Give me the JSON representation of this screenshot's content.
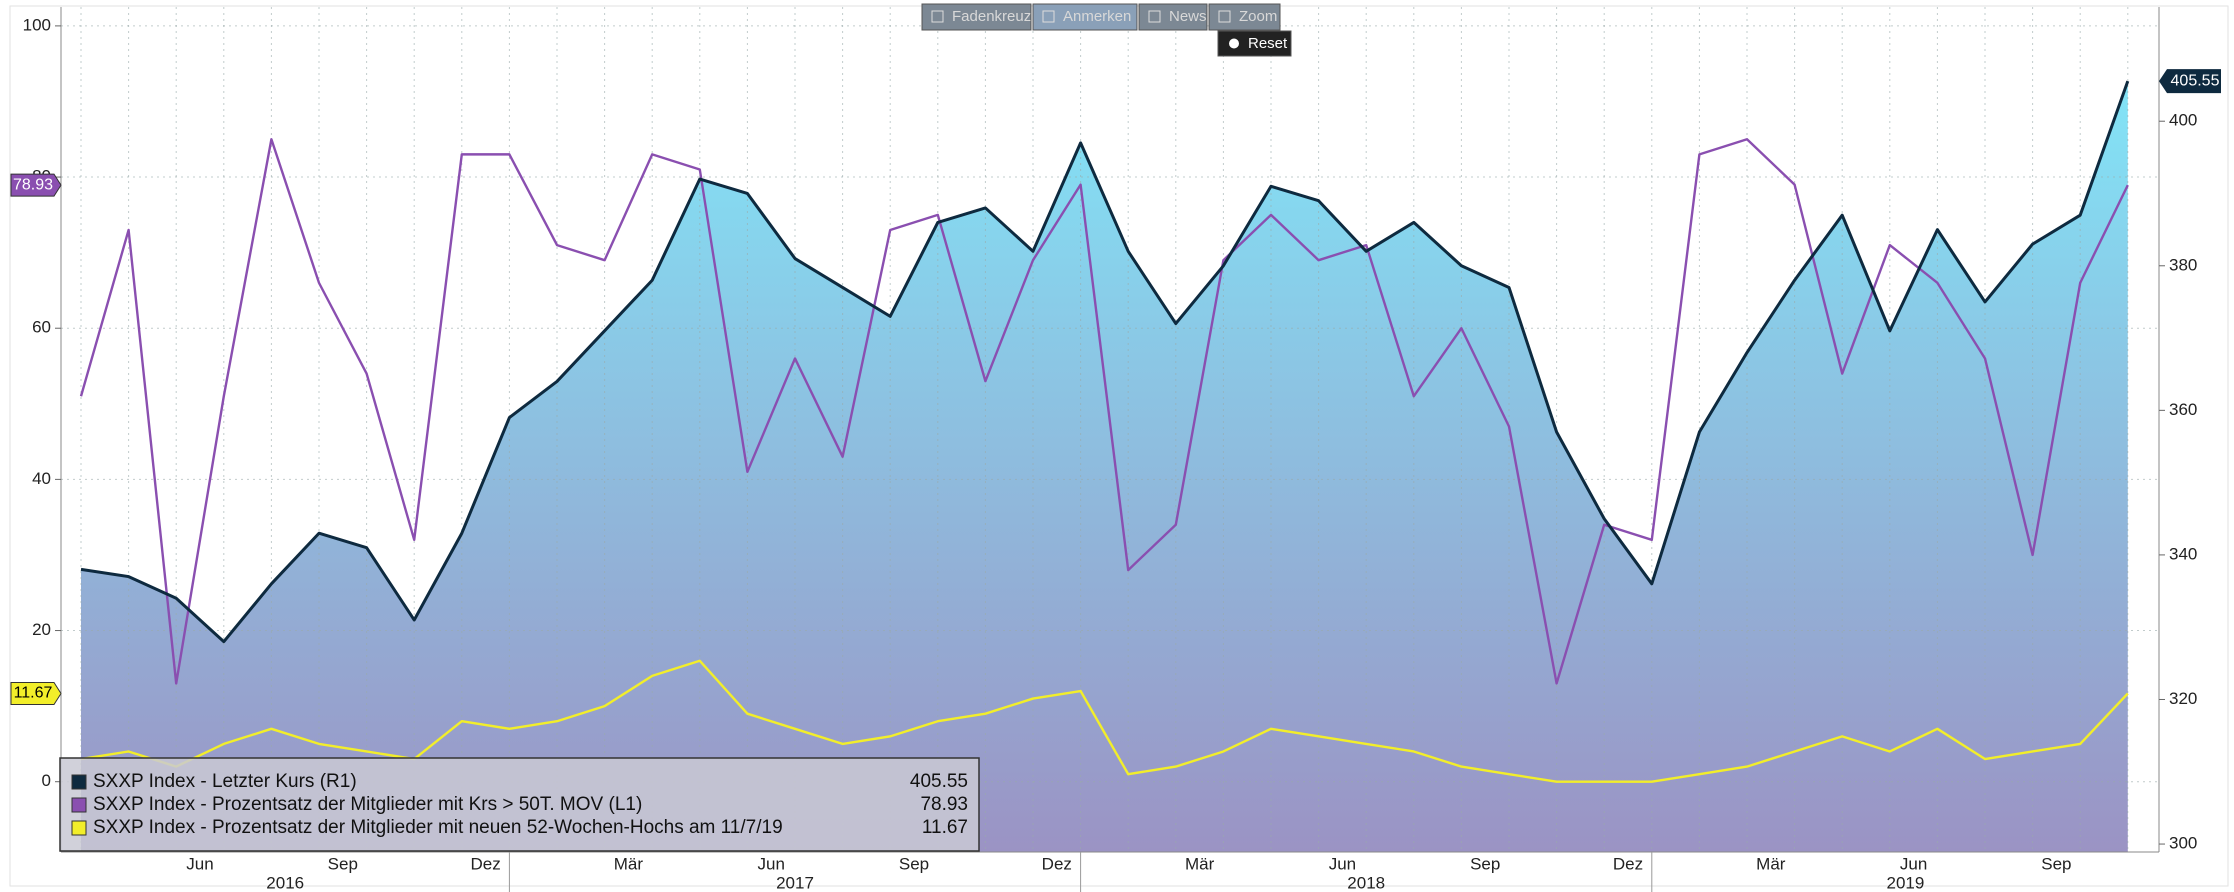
{
  "toolbar": {
    "buttons": [
      "Fadenkreuz",
      "Anmerken",
      "News",
      "Zoom"
    ],
    "reset": "Reset"
  },
  "chart_data": {
    "type": "line",
    "categories": [
      null,
      null,
      "Jun",
      null,
      null,
      "Sep",
      null,
      null,
      "Dez",
      null,
      null,
      "Mär",
      null,
      null,
      "Jun",
      null,
      null,
      "Sep",
      null,
      null,
      "Dez",
      null,
      null,
      "Mär",
      null,
      null,
      "Jun",
      null,
      null,
      "Sep",
      null,
      null,
      "Dez",
      null,
      null,
      "Mär",
      null,
      null,
      "Jun",
      null,
      null,
      "Sep",
      null,
      null
    ],
    "year_labels": [
      "2016",
      "2017",
      "2018",
      "2019"
    ],
    "series": [
      {
        "name": "SXXP Index - Letzter Kurs (R1)",
        "color": "#0e2a3f",
        "fill": [
          "#82e4f7",
          "#9b93c4"
        ],
        "axis": "y2",
        "values": [
          338,
          337,
          334,
          328,
          336,
          343,
          341,
          331,
          343,
          359,
          364,
          371,
          378,
          392,
          390,
          381,
          377,
          373,
          386,
          388,
          382,
          397,
          382,
          372,
          380,
          391,
          389,
          382,
          386,
          380,
          377,
          357,
          345,
          336,
          357,
          368,
          378,
          387,
          371,
          385,
          375,
          383,
          387,
          405.55
        ]
      },
      {
        "name": "SXXP Index - Prozentsatz der Mitglieder mit Krs > 50T. MOV (L1)",
        "color": "#8a4fb0",
        "axis": "y",
        "values": [
          51,
          73,
          13,
          51,
          85,
          66,
          54,
          32,
          83,
          83,
          71,
          69,
          83,
          81,
          41,
          56,
          43,
          73,
          75,
          53,
          69,
          79,
          28,
          34,
          69,
          75,
          69,
          71,
          51,
          60,
          47,
          13,
          34,
          32,
          83,
          85,
          79,
          54,
          71,
          66,
          56,
          30,
          66,
          78.93
        ]
      },
      {
        "name": "SXXP Index - Prozentsatz der Mitglieder mit neuen 52-Wochen-Hochs am 11/7/19",
        "color": "#f2ee2a",
        "axis": "y",
        "values": [
          3,
          4,
          2,
          5,
          7,
          5,
          4,
          3,
          8,
          7,
          8,
          10,
          14,
          16,
          9,
          7,
          5,
          6,
          8,
          9,
          11,
          12,
          1,
          2,
          4,
          7,
          6,
          5,
          4,
          2,
          1,
          0,
          0,
          0,
          1,
          2,
          4,
          6,
          4,
          7,
          3,
          4,
          5,
          11.67
        ]
      }
    ],
    "ylim": [
      -9.3,
      102.5
    ],
    "yticks": [
      0,
      20,
      40,
      60,
      80,
      100
    ],
    "y2lim": [
      298.9,
      415.8
    ],
    "y2ticks": [
      300,
      320,
      340,
      360,
      380,
      400
    ],
    "grid": true,
    "legend": "bottom-left"
  }
}
